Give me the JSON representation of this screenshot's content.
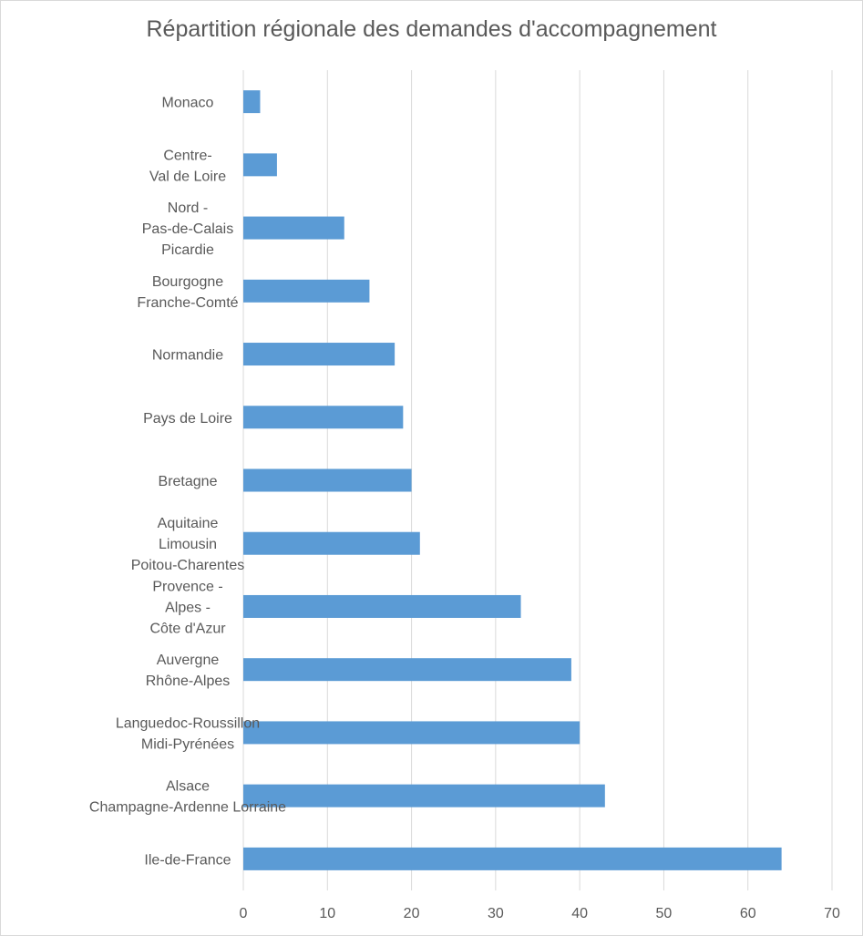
{
  "chart_data": {
    "type": "bar",
    "orientation": "horizontal",
    "title": "Répartition régionale des demandes d'accompagnement",
    "xlabel": "",
    "ylabel": "",
    "xlim": [
      0,
      70
    ],
    "ticks": [
      "0",
      "10",
      "20",
      "30",
      "40",
      "50",
      "60",
      "70"
    ],
    "grid": "vertical",
    "legend": "none",
    "bar_color": "#5B9BD5",
    "categories": [
      [
        "Monaco"
      ],
      [
        "Centre-",
        "Val de Loire"
      ],
      [
        "Nord -",
        "Pas-de-Calais",
        "Picardie"
      ],
      [
        "Bourgogne",
        "Franche-Comté"
      ],
      [
        "Normandie"
      ],
      [
        "Pays de Loire"
      ],
      [
        "Bretagne"
      ],
      [
        "Aquitaine",
        "Limousin",
        "Poitou-Charentes"
      ],
      [
        "Provence -",
        "Alpes -",
        "Côte d'Azur"
      ],
      [
        "Auvergne",
        "Rhône-Alpes"
      ],
      [
        "Languedoc-Roussillon",
        "Midi-Pyrénées"
      ],
      [
        "Alsace",
        "Champagne-Ardenne Lorraine"
      ],
      [
        "Ile-de-France"
      ]
    ],
    "values": [
      2,
      4,
      12,
      15,
      18,
      19,
      20,
      21,
      33,
      39,
      40,
      43,
      64
    ]
  }
}
